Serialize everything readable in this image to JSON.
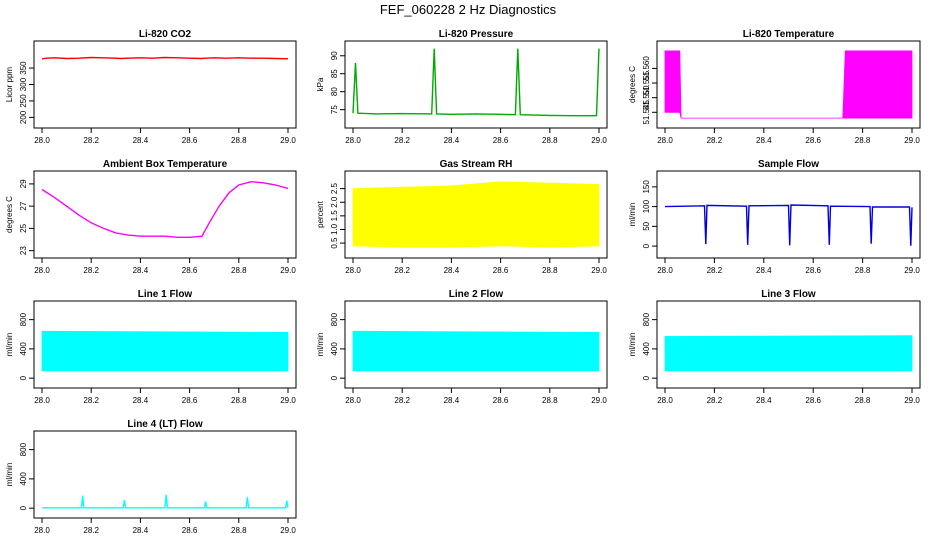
{
  "page": {
    "title": "FEF_060228  2 Hz Diagnostics"
  },
  "chart_data": [
    {
      "id": "co2",
      "type": "line",
      "title": "Li-820 CO2",
      "ylabel": "Licor ppm",
      "color": "#ff0000",
      "xlim": [
        28.0,
        29.0
      ],
      "ylim": [
        180,
        420
      ],
      "xticks": [
        28.0,
        28.2,
        28.4,
        28.6,
        28.8,
        29.0
      ],
      "xtick_labels": [
        "28.0",
        "28.2",
        "28.4",
        "28.6",
        "28.8",
        "29.0"
      ],
      "yticks": [
        200,
        250,
        300,
        350
      ],
      "ytick_labels": [
        "200",
        "250",
        "300",
        "350"
      ],
      "series": [
        {
          "x": [
            28.0,
            28.02,
            28.05,
            28.1,
            28.15,
            28.2,
            28.25,
            28.3,
            28.32,
            28.35,
            28.4,
            28.45,
            28.5,
            28.55,
            28.6,
            28.65,
            28.66,
            28.7,
            28.75,
            28.8,
            28.85,
            28.9,
            28.95,
            29.0
          ],
          "y": [
            378,
            380,
            381,
            379,
            380,
            382,
            381,
            380,
            379,
            380,
            381,
            380,
            382,
            381,
            380,
            379,
            380,
            381,
            380,
            381,
            380,
            380,
            379,
            378
          ]
        }
      ]
    },
    {
      "id": "pressure",
      "type": "line",
      "title": "Li-820 Pressure",
      "ylabel": "kPa",
      "color": "#00aa00",
      "xlim": [
        28.0,
        29.0
      ],
      "ylim": [
        71,
        93
      ],
      "xticks": [
        28.0,
        28.2,
        28.4,
        28.6,
        28.8,
        29.0
      ],
      "xtick_labels": [
        "28.0",
        "28.2",
        "28.4",
        "28.6",
        "28.8",
        "29.0"
      ],
      "yticks": [
        75,
        80,
        85,
        90
      ],
      "ytick_labels": [
        "75",
        "80",
        "85",
        "90"
      ],
      "series": [
        {
          "x": [
            28.0,
            28.01,
            28.02,
            28.1,
            28.2,
            28.32,
            28.33,
            28.34,
            28.4,
            28.5,
            28.6,
            28.66,
            28.67,
            28.68,
            28.8,
            28.9,
            28.99,
            29.0
          ],
          "y": [
            74,
            88,
            74,
            73.8,
            73.9,
            73.8,
            92,
            73.8,
            73.7,
            73.8,
            73.7,
            73.6,
            92,
            73.6,
            73.4,
            73.3,
            73.3,
            92
          ]
        }
      ]
    },
    {
      "id": "temperature",
      "type": "area",
      "title": "Li-820 Temperature",
      "ylabel": "degrees C",
      "color": "#ff00ff",
      "xlim": [
        28.0,
        29.0
      ],
      "ylim": [
        51.541,
        51.568
      ],
      "xticks": [
        28.0,
        28.2,
        28.4,
        28.6,
        28.8,
        29.0
      ],
      "xtick_labels": [
        "28.0",
        "28.2",
        "28.4",
        "28.6",
        "28.8",
        "29.0"
      ],
      "yticks": [
        51.545,
        51.55,
        51.555,
        51.56
      ],
      "ytick_labels": [
        "51.545",
        "51.550",
        "51.555",
        "51.560"
      ],
      "series": [
        {
          "x": [
            28.0,
            28.06,
            28.065,
            28.72,
            28.73,
            29.0
          ],
          "low": [
            51.545,
            51.545,
            51.543,
            51.543,
            51.543,
            51.543
          ],
          "high": [
            51.566,
            51.566,
            51.543,
            51.543,
            51.566,
            51.566
          ]
        }
      ]
    },
    {
      "id": "ambient",
      "type": "line",
      "title": "Ambient Box Temperature",
      "ylabel": "degrees C",
      "color": "#ff00ff",
      "xlim": [
        28.0,
        29.0
      ],
      "ylim": [
        22.7,
        29.8
      ],
      "xticks": [
        28.0,
        28.2,
        28.4,
        28.6,
        28.8,
        29.0
      ],
      "xtick_labels": [
        "28.0",
        "28.2",
        "28.4",
        "28.6",
        "28.8",
        "29.0"
      ],
      "yticks": [
        23,
        25,
        27,
        29
      ],
      "ytick_labels": [
        "23",
        "25",
        "27",
        "29"
      ],
      "series": [
        {
          "x": [
            28.0,
            28.05,
            28.1,
            28.15,
            28.2,
            28.25,
            28.3,
            28.35,
            28.4,
            28.45,
            28.5,
            28.55,
            28.6,
            28.65,
            28.68,
            28.72,
            28.76,
            28.8,
            28.85,
            28.9,
            28.95,
            29.0
          ],
          "y": [
            28.5,
            27.8,
            27.0,
            26.2,
            25.5,
            25.0,
            24.6,
            24.4,
            24.3,
            24.3,
            24.3,
            24.2,
            24.2,
            24.3,
            25.5,
            27.0,
            28.2,
            28.9,
            29.2,
            29.1,
            28.9,
            28.6
          ]
        }
      ]
    },
    {
      "id": "rh",
      "type": "area",
      "title": "Gas Stream RH",
      "ylabel": "percent",
      "color": "#ffff00",
      "xlim": [
        28.0,
        29.0
      ],
      "ylim": [
        0.1,
        3.0
      ],
      "xticks": [
        28.0,
        28.2,
        28.4,
        28.6,
        28.8,
        29.0
      ],
      "xtick_labels": [
        "28.0",
        "28.2",
        "28.4",
        "28.6",
        "28.8",
        "29.0"
      ],
      "yticks": [
        0.5,
        1.0,
        1.5,
        2.0,
        2.5
      ],
      "ytick_labels": [
        "0.5",
        "1.0",
        "1.5",
        "2.0",
        "2.5"
      ],
      "series": [
        {
          "x": [
            28.0,
            28.2,
            28.4,
            28.6,
            28.8,
            29.0
          ],
          "low": [
            0.4,
            0.35,
            0.35,
            0.4,
            0.35,
            0.4
          ],
          "high": [
            2.5,
            2.55,
            2.6,
            2.75,
            2.7,
            2.65
          ]
        }
      ]
    },
    {
      "id": "sample",
      "type": "line",
      "title": "Sample Flow",
      "ylabel": "ml/min",
      "color": "#0000dd",
      "xlim": [
        28.0,
        29.0
      ],
      "ylim": [
        -20,
        180
      ],
      "xticks": [
        28.0,
        28.2,
        28.4,
        28.6,
        28.8,
        29.0
      ],
      "xtick_labels": [
        "28.0",
        "28.2",
        "28.4",
        "28.6",
        "28.8",
        "29.0"
      ],
      "yticks": [
        0,
        50,
        100,
        150
      ],
      "ytick_labels": [
        "0",
        "50",
        "100",
        "150"
      ],
      "series": [
        {
          "x": [
            28.0,
            28.16,
            28.165,
            28.17,
            28.33,
            28.335,
            28.34,
            28.5,
            28.505,
            28.51,
            28.66,
            28.665,
            28.67,
            28.83,
            28.835,
            28.84,
            28.99,
            28.995,
            29.0
          ],
          "y": [
            100,
            102,
            5,
            103,
            101,
            3,
            102,
            103,
            2,
            104,
            102,
            3,
            101,
            100,
            6,
            99,
            99,
            1,
            98
          ]
        }
      ]
    },
    {
      "id": "line1",
      "type": "area",
      "title": "Line 1 Flow",
      "ylabel": "ml/min",
      "color": "#00ffff",
      "xlim": [
        28.0,
        29.0
      ],
      "ylim": [
        -80,
        1000
      ],
      "xticks": [
        28.0,
        28.2,
        28.4,
        28.6,
        28.8,
        29.0
      ],
      "xtick_labels": [
        "28.0",
        "28.2",
        "28.4",
        "28.6",
        "28.8",
        "29.0"
      ],
      "yticks": [
        0,
        400,
        800
      ],
      "ytick_labels": [
        "0",
        "400",
        "800"
      ],
      "series": [
        {
          "x": [
            28.0,
            29.0
          ],
          "low": [
            100,
            100
          ],
          "high": [
            640,
            625
          ]
        }
      ]
    },
    {
      "id": "line2",
      "type": "area",
      "title": "Line 2 Flow",
      "ylabel": "ml/min",
      "color": "#00ffff",
      "xlim": [
        28.0,
        29.0
      ],
      "ylim": [
        -80,
        1000
      ],
      "xticks": [
        28.0,
        28.2,
        28.4,
        28.6,
        28.8,
        29.0
      ],
      "xtick_labels": [
        "28.0",
        "28.2",
        "28.4",
        "28.6",
        "28.8",
        "29.0"
      ],
      "yticks": [
        0,
        400,
        800
      ],
      "ytick_labels": [
        "0",
        "400",
        "800"
      ],
      "series": [
        {
          "x": [
            28.0,
            29.0
          ],
          "low": [
            100,
            100
          ],
          "high": [
            640,
            625
          ]
        }
      ]
    },
    {
      "id": "line3",
      "type": "area",
      "title": "Line 3 Flow",
      "ylabel": "ml/min",
      "color": "#00ffff",
      "xlim": [
        28.0,
        29.0
      ],
      "ylim": [
        -80,
        1000
      ],
      "xticks": [
        28.0,
        28.2,
        28.4,
        28.6,
        28.8,
        29.0
      ],
      "xtick_labels": [
        "28.0",
        "28.2",
        "28.4",
        "28.6",
        "28.8",
        "29.0"
      ],
      "yticks": [
        0,
        400,
        800
      ],
      "ytick_labels": [
        "0",
        "400",
        "800"
      ],
      "series": [
        {
          "x": [
            28.0,
            29.0
          ],
          "low": [
            100,
            100
          ],
          "high": [
            570,
            580
          ]
        }
      ]
    },
    {
      "id": "line4",
      "type": "line",
      "title": "Line 4 (LT) Flow",
      "ylabel": "ml/min",
      "color": "#00ffff",
      "xlim": [
        28.0,
        29.0
      ],
      "ylim": [
        -80,
        1000
      ],
      "xticks": [
        28.0,
        28.2,
        28.4,
        28.6,
        28.8,
        29.0
      ],
      "xtick_labels": [
        "28.0",
        "28.2",
        "28.4",
        "28.6",
        "28.8",
        "29.0"
      ],
      "yticks": [
        0,
        400,
        800
      ],
      "ytick_labels": [
        "0",
        "400",
        "800"
      ],
      "series": [
        {
          "x": [
            28.0,
            28.16,
            28.165,
            28.17,
            28.33,
            28.335,
            28.34,
            28.5,
            28.505,
            28.51,
            28.66,
            28.665,
            28.67,
            28.83,
            28.835,
            28.84,
            28.99,
            28.995,
            29.0
          ],
          "y": [
            5,
            5,
            170,
            5,
            5,
            110,
            5,
            5,
            180,
            5,
            5,
            90,
            5,
            5,
            150,
            5,
            5,
            100,
            5
          ]
        }
      ]
    }
  ]
}
